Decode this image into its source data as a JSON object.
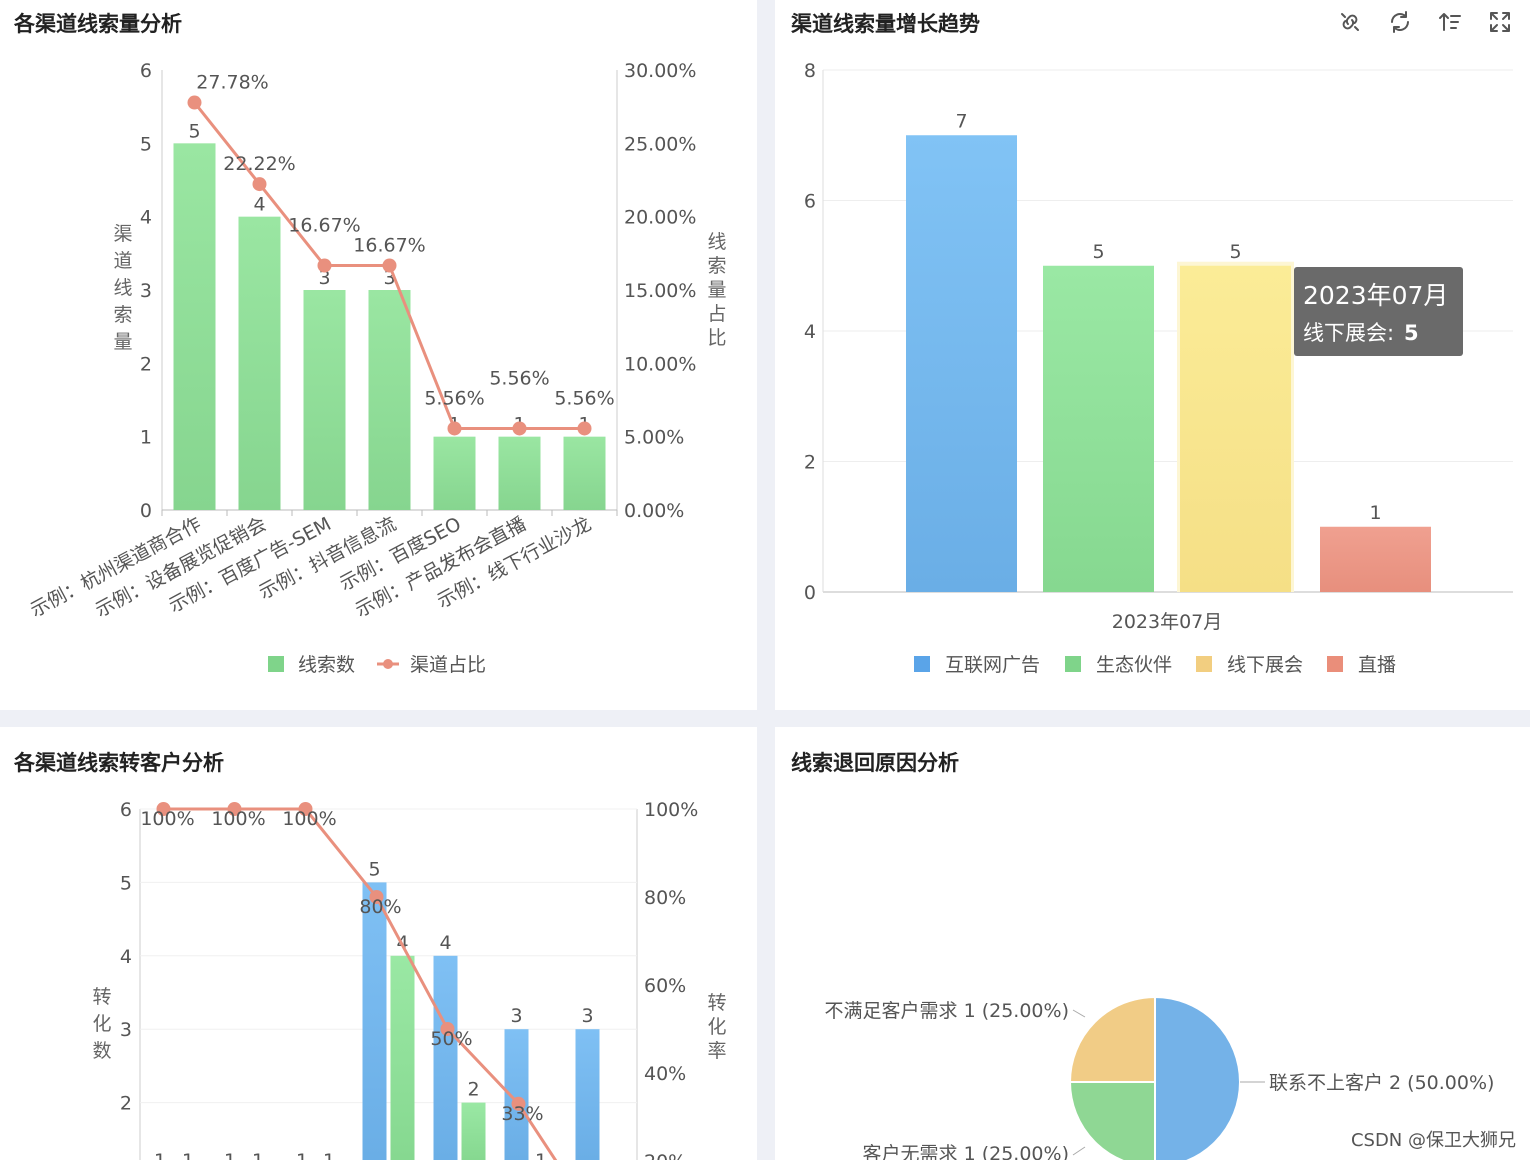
{
  "panels": {
    "p1_title": "各渠道线索量分析",
    "p2_title": "渠道线索量增长趋势",
    "p3_title": "各渠道线索转客户分析",
    "p4_title": "线索退回原因分析"
  },
  "toolbar": {
    "icons": [
      "unlink-icon",
      "refresh-icon",
      "sort-icon",
      "fullscreen-icon"
    ]
  },
  "watermark": "CSDN @保卫大狮兄",
  "colors": {
    "green": "#8fdd98",
    "blue": "#6fb4ee",
    "yellow": "#f8e48a",
    "red": "#ea9888",
    "line": "#e9907e",
    "legend_blue": "#5aa4e8",
    "legend_green": "#7fd48a",
    "legend_yellow": "#f2ce80",
    "legend_red": "#ea8e7a"
  },
  "chart_data": [
    {
      "type": "bar",
      "panel": "p1",
      "categories": [
        "示例：杭州渠道商合作",
        "示例：设备展览促销会",
        "示例：百度广告-SEM",
        "示例：抖音信息流",
        "示例：百度SEO",
        "示例：产品发布会直播",
        "示例：线下行业沙龙"
      ],
      "series": [
        {
          "name": "线索数",
          "kind": "bar",
          "axis": "left",
          "values": [
            5,
            4,
            3,
            3,
            1,
            1,
            1
          ],
          "labels": [
            "5",
            "4",
            "3",
            "3",
            "1",
            "1",
            "1"
          ]
        },
        {
          "name": "渠道占比",
          "kind": "line",
          "axis": "right",
          "values": [
            27.78,
            22.22,
            16.67,
            16.67,
            5.56,
            5.56,
            5.56
          ],
          "labels": [
            "27.78%",
            "22.22%",
            "16.67%",
            "16.67%",
            "5.56%",
            "5.56%",
            "5.56%"
          ]
        }
      ],
      "ylabel": "渠道线索量",
      "y2label": "线索量占比",
      "ylim": [
        0,
        6
      ],
      "yticks": [
        "0",
        "1",
        "2",
        "3",
        "4",
        "5",
        "6"
      ],
      "y2lim": [
        0,
        30
      ],
      "y2ticks": [
        "0.00%",
        "5.00%",
        "10.00%",
        "15.00%",
        "20.00%",
        "25.00%",
        "30.00%"
      ],
      "legend": [
        "线索数",
        "渠道占比"
      ],
      "legend_position": "bottom"
    },
    {
      "type": "bar",
      "panel": "p2",
      "categories": [
        "2023年07月"
      ],
      "series": [
        {
          "name": "互联网广告",
          "values": [
            7
          ],
          "labels": [
            "7"
          ]
        },
        {
          "name": "生态伙伴",
          "values": [
            5
          ],
          "labels": [
            "5"
          ]
        },
        {
          "name": "线下展会",
          "values": [
            5
          ],
          "labels": [
            "5"
          ]
        },
        {
          "name": "直播",
          "values": [
            1
          ],
          "labels": [
            "1"
          ]
        }
      ],
      "ylim": [
        0,
        8
      ],
      "yticks": [
        "0",
        "2",
        "4",
        "6",
        "8"
      ],
      "legend": [
        "互联网广告",
        "生态伙伴",
        "线下展会",
        "直播"
      ],
      "legend_position": "bottom",
      "tooltip": {
        "title": "2023年07月",
        "label": "线下展会:",
        "value": "5"
      }
    },
    {
      "type": "bar",
      "panel": "p3",
      "note_visible": "partially cropped at bottom",
      "series": [
        {
          "name": "blue",
          "kind": "bar",
          "visible_bars": [
            {
              "slot": 3,
              "value": 5,
              "label": "5"
            },
            {
              "slot": 4,
              "value": 4,
              "label": "4"
            },
            {
              "slot": 5,
              "value": 3,
              "label": "3"
            },
            {
              "slot": 6,
              "value": 3,
              "label": "3"
            }
          ]
        },
        {
          "name": "green",
          "kind": "bar",
          "visible_bars": [
            {
              "slot": 3,
              "value": 4,
              "label": "4"
            },
            {
              "slot": 4,
              "value": 2,
              "label": "2"
            }
          ]
        },
        {
          "name": "rate",
          "kind": "line",
          "points": [
            {
              "slot": 0,
              "value": 100,
              "label": "100%"
            },
            {
              "slot": 1,
              "value": 100,
              "label": "100%"
            },
            {
              "slot": 2,
              "value": 100,
              "label": "100%"
            },
            {
              "slot": 3,
              "value": 80,
              "label": "80%"
            },
            {
              "slot": 4,
              "value": 50,
              "label": "50%"
            },
            {
              "slot": 5,
              "value": 33,
              "label": "33%"
            },
            {
              "slot": 6,
              "value": 0
            }
          ]
        }
      ],
      "small_labels": [
        "1",
        "1",
        "1",
        "1",
        "1",
        "1",
        "1"
      ],
      "ylabel": "转化数",
      "y2label": "转化率",
      "ylim": [
        0,
        6
      ],
      "yticks": [
        "2",
        "3",
        "4",
        "5",
        "6"
      ],
      "y2ticks": [
        "20%",
        "40%",
        "60%",
        "80%",
        "100%"
      ]
    },
    {
      "type": "pie",
      "panel": "p4",
      "slices": [
        {
          "name": "联系不上客户",
          "value": 2,
          "label": "联系不上客户 2 (50.00%)",
          "color": "#74b2e8"
        },
        {
          "name": "客户无需求",
          "value": 1,
          "label": "客户无需求 1 (25.00%)",
          "color": "#8fd794"
        },
        {
          "name": "不满足客户需求",
          "value": 1,
          "label": "不满足客户需求 1 (25.00%)",
          "color": "#f1cc86"
        }
      ]
    }
  ]
}
